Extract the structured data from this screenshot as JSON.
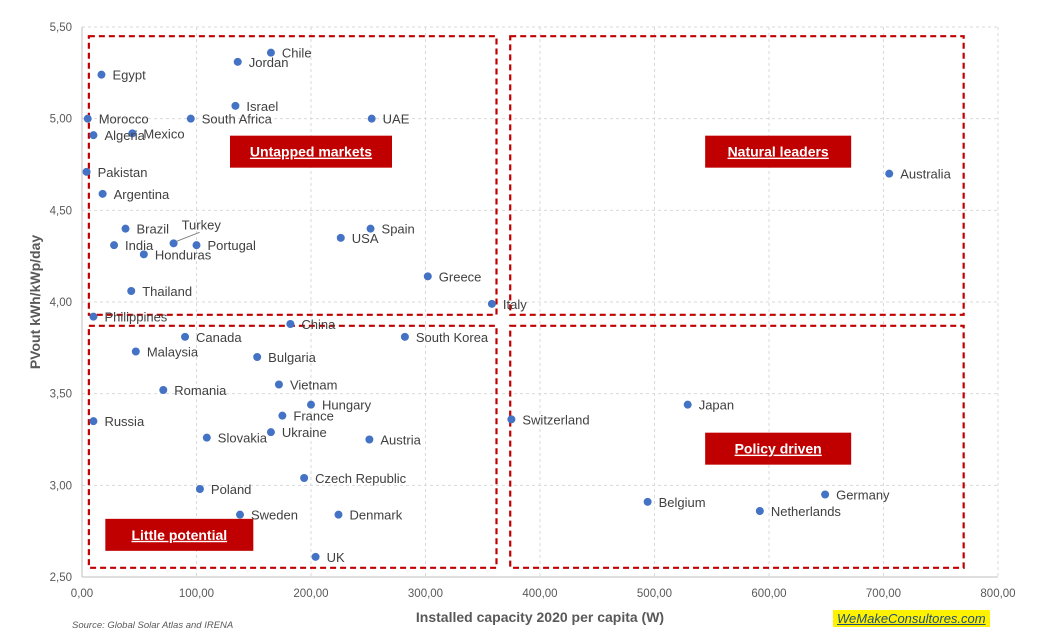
{
  "chart_data": {
    "type": "scatter",
    "xlabel": "Installed capacity  2020 per capita (W)",
    "ylabel": "PVout kWh/kWp/day",
    "xlim": [
      0,
      800
    ],
    "ylim": [
      2.5,
      5.5
    ],
    "x_ticks": [
      "0,00",
      "100,00",
      "200,00",
      "300,00",
      "400,00",
      "500,00",
      "600,00",
      "700,00",
      "800,00"
    ],
    "y_ticks": [
      "2,50",
      "3,00",
      "3,50",
      "4,00",
      "4,50",
      "5,00",
      "5,50"
    ],
    "grid": true,
    "marker_color": "#4472c4",
    "points": [
      {
        "label": "Chile",
        "x": 165,
        "y": 5.36
      },
      {
        "label": "Jordan",
        "x": 136,
        "y": 5.31
      },
      {
        "label": "Egypt",
        "x": 17,
        "y": 5.24
      },
      {
        "label": "Israel",
        "x": 134,
        "y": 5.07
      },
      {
        "label": "Morocco",
        "x": 5,
        "y": 5.0
      },
      {
        "label": "South Africa",
        "x": 95,
        "y": 5.0
      },
      {
        "label": "UAE",
        "x": 253,
        "y": 5.0
      },
      {
        "label": "Algeria",
        "x": 10,
        "y": 4.91
      },
      {
        "label": "Mexico",
        "x": 44,
        "y": 4.92
      },
      {
        "label": "Pakistan",
        "x": 4,
        "y": 4.71
      },
      {
        "label": "Argentina",
        "x": 18,
        "y": 4.59
      },
      {
        "label": "Australia",
        "x": 705,
        "y": 4.7
      },
      {
        "label": "Brazil",
        "x": 38,
        "y": 4.4
      },
      {
        "label": "Spain",
        "x": 252,
        "y": 4.4
      },
      {
        "label": "India",
        "x": 28,
        "y": 4.31
      },
      {
        "label": "Turkey",
        "x": 80,
        "y": 4.32
      },
      {
        "label": "Portugal",
        "x": 100,
        "y": 4.31
      },
      {
        "label": "USA",
        "x": 226,
        "y": 4.35
      },
      {
        "label": "Honduras",
        "x": 54,
        "y": 4.26
      },
      {
        "label": "Greece",
        "x": 302,
        "y": 4.14
      },
      {
        "label": "Thailand",
        "x": 43,
        "y": 4.06
      },
      {
        "label": "Italy",
        "x": 358,
        "y": 3.99
      },
      {
        "label": "Philippines",
        "x": 10,
        "y": 3.92
      },
      {
        "label": "China",
        "x": 182,
        "y": 3.88
      },
      {
        "label": "Canada",
        "x": 90,
        "y": 3.81
      },
      {
        "label": "South Korea",
        "x": 282,
        "y": 3.81
      },
      {
        "label": "Malaysia",
        "x": 47,
        "y": 3.73
      },
      {
        "label": "Bulgaria",
        "x": 153,
        "y": 3.7
      },
      {
        "label": "Vietnam",
        "x": 172,
        "y": 3.55
      },
      {
        "label": "Romania",
        "x": 71,
        "y": 3.52
      },
      {
        "label": "Hungary",
        "x": 200,
        "y": 3.44
      },
      {
        "label": "Japan",
        "x": 529,
        "y": 3.44
      },
      {
        "label": "France",
        "x": 175,
        "y": 3.38
      },
      {
        "label": "Russia",
        "x": 10,
        "y": 3.35
      },
      {
        "label": "Switzerland",
        "x": 375,
        "y": 3.36
      },
      {
        "label": "Ukraine",
        "x": 165,
        "y": 3.29
      },
      {
        "label": "Slovakia",
        "x": 109,
        "y": 3.26
      },
      {
        "label": "Austria",
        "x": 251,
        "y": 3.25
      },
      {
        "label": "Czech Republic",
        "x": 194,
        "y": 3.04
      },
      {
        "label": "Poland",
        "x": 103,
        "y": 2.98
      },
      {
        "label": "Germany",
        "x": 649,
        "y": 2.95
      },
      {
        "label": "Belgium",
        "x": 494,
        "y": 2.91
      },
      {
        "label": "Netherlands",
        "x": 592,
        "y": 2.86
      },
      {
        "label": "Sweden",
        "x": 138,
        "y": 2.84
      },
      {
        "label": "Denmark",
        "x": 224,
        "y": 2.84
      },
      {
        "label": "UK",
        "x": 204,
        "y": 2.61
      }
    ],
    "quadrants": [
      {
        "label": "Untapped markets",
        "box": {
          "x0": 6,
          "x1": 362,
          "y0": 3.93,
          "y1": 5.45
        },
        "tag": {
          "x": 200,
          "y": 4.82
        }
      },
      {
        "label": "Natural leaders",
        "box": {
          "x0": 374,
          "x1": 770,
          "y0": 3.93,
          "y1": 5.45
        },
        "tag": {
          "x": 608,
          "y": 4.82
        }
      },
      {
        "label": "Little potential",
        "box": {
          "x0": 6,
          "x1": 362,
          "y0": 2.55,
          "y1": 3.87
        },
        "tag": {
          "x": 85,
          "y": 2.73
        }
      },
      {
        "label": "Policy driven",
        "box": {
          "x0": 374,
          "x1": 770,
          "y0": 2.55,
          "y1": 3.87
        },
        "tag": {
          "x": 608,
          "y": 3.2
        }
      }
    ],
    "quadrant_color": "#c00000"
  },
  "footer": {
    "source": "Source:  Global Solar Atlas and IRENA",
    "brand": "WeMakeConsultores.com"
  }
}
